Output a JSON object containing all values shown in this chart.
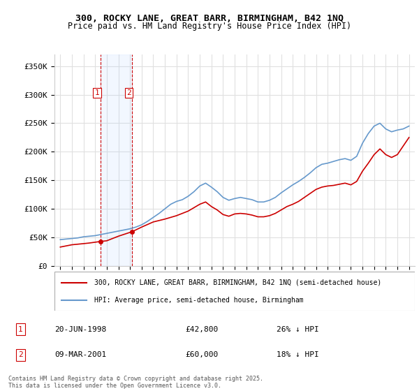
{
  "title_line1": "300, ROCKY LANE, GREAT BARR, BIRMINGHAM, B42 1NQ",
  "title_line2": "Price paid vs. HM Land Registry's House Price Index (HPI)",
  "xlabel": "",
  "ylabel": "",
  "background_color": "#ffffff",
  "plot_bg_color": "#ffffff",
  "grid_color": "#e0e0e0",
  "line1_color": "#cc0000",
  "line2_color": "#6699cc",
  "sale1_date": "20-JUN-1998",
  "sale1_price": 42800,
  "sale1_pct": "26% ↓ HPI",
  "sale2_date": "09-MAR-2001",
  "sale2_price": 60000,
  "sale2_pct": "18% ↓ HPI",
  "legend1": "300, ROCKY LANE, GREAT BARR, BIRMINGHAM, B42 1NQ (semi-detached house)",
  "legend2": "HPI: Average price, semi-detached house, Birmingham",
  "footer": "Contains HM Land Registry data © Crown copyright and database right 2025.\nThis data is licensed under the Open Government Licence v3.0.",
  "vline1_x": 1998.47,
  "vline2_x": 2001.19,
  "ylim": [
    0,
    370000
  ],
  "yticks": [
    0,
    50000,
    100000,
    150000,
    200000,
    250000,
    300000,
    350000
  ],
  "ytick_labels": [
    "£0",
    "£50K",
    "£100K",
    "£150K",
    "£200K",
    "£250K",
    "£300K",
    "£350K"
  ],
  "xlim_start": 1994.5,
  "xlim_end": 2025.5,
  "hpi_years": [
    1995,
    1995.5,
    1996,
    1996.5,
    1997,
    1997.5,
    1998,
    1998.5,
    1999,
    1999.5,
    2000,
    2000.5,
    2001,
    2001.5,
    2002,
    2002.5,
    2003,
    2003.5,
    2004,
    2004.5,
    2005,
    2005.5,
    2006,
    2006.5,
    2007,
    2007.5,
    2008,
    2008.5,
    2009,
    2009.5,
    2010,
    2010.5,
    2011,
    2011.5,
    2012,
    2012.5,
    2013,
    2013.5,
    2014,
    2014.5,
    2015,
    2015.5,
    2016,
    2016.5,
    2017,
    2017.5,
    2018,
    2018.5,
    2019,
    2019.5,
    2020,
    2020.5,
    2021,
    2021.5,
    2022,
    2022.5,
    2023,
    2023.5,
    2024,
    2024.5,
    2025
  ],
  "hpi_values": [
    46000,
    47000,
    48000,
    49000,
    51000,
    52000,
    53000,
    55000,
    57000,
    59000,
    61000,
    63000,
    65000,
    68000,
    72000,
    78000,
    85000,
    92000,
    100000,
    108000,
    113000,
    116000,
    122000,
    130000,
    140000,
    145000,
    138000,
    130000,
    120000,
    115000,
    118000,
    120000,
    118000,
    116000,
    112000,
    112000,
    115000,
    120000,
    128000,
    135000,
    142000,
    148000,
    155000,
    163000,
    172000,
    178000,
    180000,
    183000,
    186000,
    188000,
    185000,
    192000,
    215000,
    232000,
    245000,
    250000,
    240000,
    235000,
    238000,
    240000,
    245000
  ],
  "price_years": [
    1998.47,
    2001.19
  ],
  "price_values": [
    42800,
    60000
  ],
  "price_years_extended": [
    1995,
    1995.25,
    1995.5,
    1995.75,
    1996,
    1996.5,
    1997,
    1997.47,
    1998.47,
    1999,
    2000,
    2001.19,
    2002,
    2003,
    2004,
    2005,
    2006,
    2007,
    2007.5,
    2008,
    2008.5,
    2009,
    2009.5,
    2010,
    2010.5,
    2011,
    2011.5,
    2012,
    2012.5,
    2013,
    2013.5,
    2014,
    2014.5,
    2015,
    2015.5,
    2016,
    2016.5,
    2017,
    2017.5,
    2018,
    2018.5,
    2019,
    2019.5,
    2020,
    2020.5,
    2021,
    2021.5,
    2022,
    2022.5,
    2023,
    2023.5,
    2024,
    2024.5,
    2025
  ],
  "price_values_extended": [
    33000,
    34000,
    35000,
    36000,
    37000,
    38000,
    39000,
    40000,
    42800,
    44000,
    52000,
    60000,
    68000,
    77000,
    82000,
    88000,
    96000,
    108000,
    112000,
    104000,
    98000,
    90000,
    87000,
    91000,
    92000,
    91000,
    89000,
    86000,
    86000,
    88000,
    92000,
    98000,
    104000,
    108000,
    113000,
    120000,
    127000,
    134000,
    138000,
    140000,
    141000,
    143000,
    145000,
    142000,
    148000,
    166000,
    180000,
    195000,
    205000,
    195000,
    190000,
    195000,
    210000,
    225000
  ]
}
